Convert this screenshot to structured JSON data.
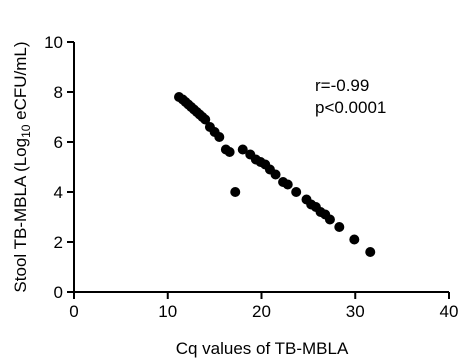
{
  "chart_data": {
    "type": "scatter",
    "title": "",
    "xlabel": "Cq values of TB-MBLA",
    "ylabel": {
      "prefix": "Stool TB-MBLA (Log",
      "subscript": "10",
      "suffix": " eCFU/mL)"
    },
    "xlim": [
      0,
      40
    ],
    "ylim": [
      0,
      10
    ],
    "xticks": [
      0,
      10,
      20,
      30,
      40
    ],
    "yticks": [
      0,
      2,
      4,
      6,
      8,
      10
    ],
    "grid": false,
    "annotations": [
      "r=-0.99",
      "p<0.0001"
    ],
    "series": [
      {
        "color": "#000000",
        "points": [
          {
            "x": 11.2,
            "y": 7.8
          },
          {
            "x": 11.6,
            "y": 7.7
          },
          {
            "x": 11.9,
            "y": 7.6
          },
          {
            "x": 12.2,
            "y": 7.5
          },
          {
            "x": 12.5,
            "y": 7.4
          },
          {
            "x": 12.8,
            "y": 7.3
          },
          {
            "x": 13.1,
            "y": 7.2
          },
          {
            "x": 13.4,
            "y": 7.1
          },
          {
            "x": 13.7,
            "y": 7.0
          },
          {
            "x": 14.0,
            "y": 6.9
          },
          {
            "x": 14.5,
            "y": 6.6
          },
          {
            "x": 15.0,
            "y": 6.4
          },
          {
            "x": 15.5,
            "y": 6.2
          },
          {
            "x": 16.2,
            "y": 5.7
          },
          {
            "x": 16.6,
            "y": 5.6
          },
          {
            "x": 17.2,
            "y": 4.0
          },
          {
            "x": 18.0,
            "y": 5.7
          },
          {
            "x": 18.8,
            "y": 5.5
          },
          {
            "x": 19.4,
            "y": 5.3
          },
          {
            "x": 19.9,
            "y": 5.2
          },
          {
            "x": 20.4,
            "y": 5.1
          },
          {
            "x": 20.9,
            "y": 4.9
          },
          {
            "x": 21.5,
            "y": 4.7
          },
          {
            "x": 22.3,
            "y": 4.4
          },
          {
            "x": 22.8,
            "y": 4.3
          },
          {
            "x": 23.7,
            "y": 4.0
          },
          {
            "x": 24.8,
            "y": 3.7
          },
          {
            "x": 25.3,
            "y": 3.5
          },
          {
            "x": 25.8,
            "y": 3.4
          },
          {
            "x": 26.3,
            "y": 3.2
          },
          {
            "x": 26.8,
            "y": 3.1
          },
          {
            "x": 27.3,
            "y": 2.9
          },
          {
            "x": 28.3,
            "y": 2.6
          },
          {
            "x": 29.9,
            "y": 2.1
          },
          {
            "x": 31.6,
            "y": 1.6
          }
        ]
      }
    ]
  }
}
